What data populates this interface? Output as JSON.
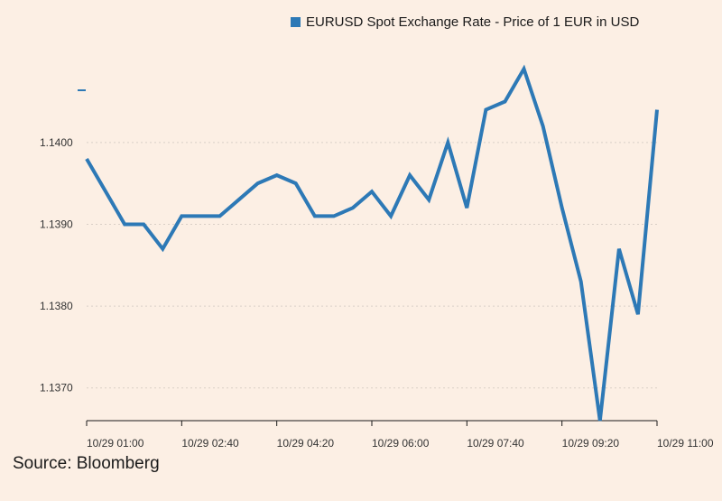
{
  "chart_data": {
    "type": "line",
    "title": "",
    "xlabel": "",
    "ylabel": "",
    "source": "Source: Bloomberg",
    "legend": {
      "position": "top-right"
    },
    "grid": {
      "y": true,
      "x": false
    },
    "ylim": [
      1.1366,
      1.1413
    ],
    "y_ticks": [
      "1.1370",
      "1.1380",
      "1.1390",
      "1.1400"
    ],
    "x_tick_labels": [
      "10/29 01:00",
      "10/29 02:40",
      "10/29 04:20",
      "10/29 06:00",
      "10/29 07:40",
      "10/29 09:20",
      "10/29 11:00"
    ],
    "series": [
      {
        "name": "EURUSD Spot Exchange Rate - Price of 1 EUR in USD",
        "color": "#2d79b6",
        "x": [
          "10/29 01:00",
          "10/29 01:20",
          "10/29 01:40",
          "10/29 02:00",
          "10/29 02:20",
          "10/29 02:40",
          "10/29 03:00",
          "10/29 03:20",
          "10/29 03:40",
          "10/29 04:00",
          "10/29 04:20",
          "10/29 04:40",
          "10/29 05:00",
          "10/29 05:20",
          "10/29 05:40",
          "10/29 06:00",
          "10/29 06:20",
          "10/29 06:40",
          "10/29 07:00",
          "10/29 07:20",
          "10/29 07:40",
          "10/29 08:00",
          "10/29 08:20",
          "10/29 08:40",
          "10/29 09:00",
          "10/29 09:20",
          "10/29 09:40",
          "10/29 10:00",
          "10/29 10:20",
          "10/29 10:40",
          "10/29 11:00"
        ],
        "values": [
          1.1398,
          1.1394,
          1.139,
          1.139,
          1.1387,
          1.1391,
          1.1391,
          1.1391,
          1.1393,
          1.1395,
          1.1396,
          1.1395,
          1.1391,
          1.1391,
          1.1392,
          1.1394,
          1.1391,
          1.1396,
          1.1393,
          1.14,
          1.1392,
          1.1404,
          1.1405,
          1.1409,
          1.1402,
          1.1392,
          1.1383,
          1.1366,
          1.1387,
          1.1379,
          1.1404
        ]
      }
    ]
  }
}
